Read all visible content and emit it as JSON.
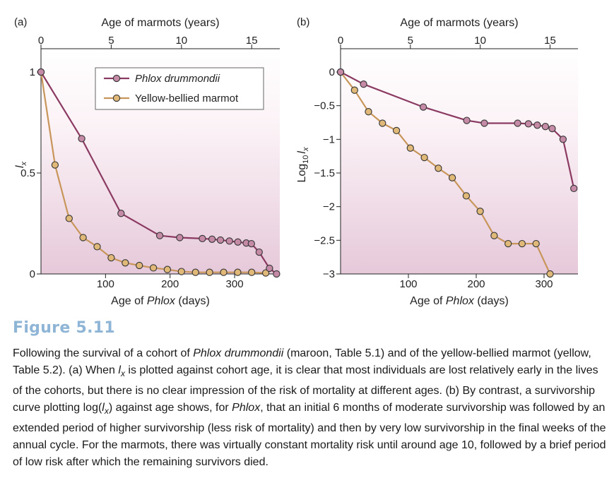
{
  "panel_labels": [
    "(a)",
    "(b)"
  ],
  "caption": {
    "figure_label": "Figure 5.11",
    "parts": [
      {
        "t": "Following the survival of a cohort of "
      },
      {
        "t": "Phlox drummondii",
        "i": true
      },
      {
        "t": " (maroon, Table 5.1) and of the yellow-bellied marmot (yellow, Table 5.2). (a) When "
      },
      {
        "t": "l",
        "i": true
      },
      {
        "t": "x",
        "i": true,
        "sub": true
      },
      {
        "t": " is plotted against cohort age, it is clear that most individuals are lost relatively early in the lives of the cohorts, but there is no clear impression of the risk of mortality at different ages. (b) By contrast, a survivorship curve plotting log("
      },
      {
        "t": "l",
        "i": true
      },
      {
        "t": "x",
        "i": true,
        "sub": true
      },
      {
        "t": ") against age shows, for "
      },
      {
        "t": "Phlox",
        "i": true
      },
      {
        "t": ", that an initial 6 months of moderate survivorship was followed by an extended period of higher survivorship (less risk of mortality) and then by very low survivorship in the final weeks of the annual cycle. For the marmots, there was virtually constant mortality risk until around age 10, followed by a brief period of low risk after which the remaining survivors died."
      }
    ]
  },
  "chart_data": [
    {
      "panel": "(a)",
      "type": "line",
      "top_axis": {
        "label": "Age of marmots (years)",
        "ticks": [
          0,
          5,
          10,
          15
        ],
        "tick_labels": [
          "0",
          "5",
          "10",
          "15"
        ],
        "range": [
          0,
          17
        ]
      },
      "xlabel": {
        "prefix": "Age of ",
        "italic": "Phlox",
        "suffix": " (days)"
      },
      "xlim": [
        0,
        370
      ],
      "x_ticks": [
        100,
        200,
        300
      ],
      "x_tick_labels": [
        "100",
        "200",
        "300"
      ],
      "ylabel": {
        "main": "l",
        "sub": "x"
      },
      "ylim": [
        0,
        1
      ],
      "y_ticks": [
        0,
        0.5,
        1
      ],
      "y_tick_labels": [
        "0",
        "0.5",
        "1"
      ],
      "legend": {
        "position": "top-right",
        "entries": [
          {
            "name": "Phlox drummondii",
            "italic": true,
            "color": "#8b3a62"
          },
          {
            "name": "Yellow-bellied marmot",
            "italic": false,
            "color": "#c8965a"
          }
        ]
      },
      "series": [
        {
          "name": "Phlox drummondii",
          "axis": "days",
          "color": "#8b3a62",
          "x": [
            0,
            63,
            124,
            184,
            215,
            250,
            265,
            278,
            292,
            305,
            318,
            326,
            338,
            354,
            365
          ],
          "y": [
            1.0,
            0.67,
            0.3,
            0.19,
            0.18,
            0.175,
            0.172,
            0.168,
            0.163,
            0.158,
            0.153,
            0.15,
            0.108,
            0.028,
            0.0
          ]
        },
        {
          "name": "Yellow-bellied marmot",
          "axis": "years",
          "color": "#c8965a",
          "x": [
            0,
            1,
            2,
            3,
            4,
            5,
            6,
            7,
            8,
            9,
            10,
            11,
            12,
            13,
            14,
            15,
            16
          ],
          "y": [
            1.0,
            0.54,
            0.275,
            0.18,
            0.135,
            0.08,
            0.055,
            0.042,
            0.03,
            0.022,
            0.012,
            0.008,
            0.008,
            0.008,
            0.008,
            0.008,
            0.005
          ]
        }
      ]
    },
    {
      "panel": "(b)",
      "type": "line",
      "top_axis": {
        "label": "Age of marmots (years)",
        "ticks": [
          0,
          5,
          10,
          15
        ],
        "tick_labels": [
          "0",
          "5",
          "10",
          "15"
        ],
        "range": [
          0,
          17
        ]
      },
      "xlabel": {
        "prefix": "Age of ",
        "italic": "Phlox",
        "suffix": " (days)"
      },
      "xlim": [
        0,
        350
      ],
      "x_ticks": [
        100,
        200,
        300
      ],
      "x_tick_labels": [
        "100",
        "200",
        "300"
      ],
      "ylabel": {
        "main": "Log",
        "sub1": "10",
        "italic": "l",
        "sub2": "x"
      },
      "ylim": [
        -3,
        0
      ],
      "y_ticks": [
        0,
        -0.5,
        -1,
        -1.5,
        -2,
        -2.5,
        -3
      ],
      "y_tick_labels": [
        "0",
        "−0.5",
        "−1",
        "−1.5",
        "−2",
        "−2.5",
        "−3"
      ],
      "series": [
        {
          "name": "Phlox drummondii",
          "axis": "days",
          "color": "#8b3a62",
          "x": [
            0,
            34,
            122,
            186,
            212,
            261,
            277,
            290,
            302,
            312,
            328,
            344
          ],
          "y": [
            0.0,
            -0.18,
            -0.52,
            -0.72,
            -0.76,
            -0.76,
            -0.77,
            -0.79,
            -0.81,
            -0.84,
            -1.0,
            -1.73
          ]
        },
        {
          "name": "Yellow-bellied marmot",
          "axis": "years",
          "color": "#c8965a",
          "x": [
            0,
            1,
            2,
            3,
            4,
            5,
            6,
            7,
            8,
            9,
            10,
            11,
            12,
            13,
            14,
            15
          ],
          "y": [
            0.0,
            -0.27,
            -0.59,
            -0.76,
            -0.87,
            -1.13,
            -1.27,
            -1.43,
            -1.57,
            -1.84,
            -2.07,
            -2.43,
            -2.55,
            -2.55,
            -2.55,
            -3.0
          ]
        }
      ]
    }
  ]
}
